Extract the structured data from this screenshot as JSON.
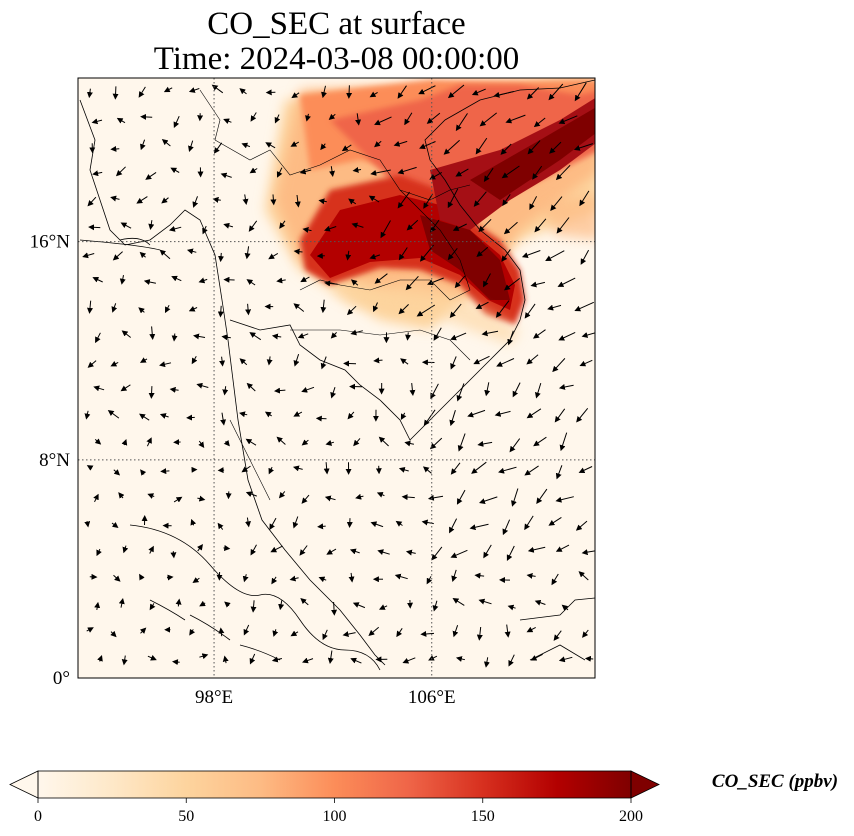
{
  "figure": {
    "title_line1": "CO_SEC at surface",
    "title_line2": "Time: 2024-03-08 00:00:00"
  },
  "map": {
    "projection": "PlateCarree",
    "lon_range": [
      93,
      112
    ],
    "lat_range": [
      0,
      22
    ],
    "lon_ticks": [
      {
        "value": 98,
        "label": "98°E"
      },
      {
        "value": 106,
        "label": "106°E"
      }
    ],
    "lat_ticks": [
      {
        "value": 16,
        "label": "16°N"
      },
      {
        "value": 8,
        "label": "8°N"
      },
      {
        "value": 0,
        "label": "0°"
      }
    ],
    "gridlines": "dotted",
    "field": "CO_SEC",
    "plume": [
      {
        "region": "northern Vietnam / Laos",
        "level": "high"
      },
      {
        "region": "northeast Thailand",
        "level": "high"
      },
      {
        "region": "central Vietnam",
        "level": "high"
      },
      {
        "region": "southern Cambodia / Vietnam",
        "level": "low"
      }
    ],
    "wind_vectors": "shown"
  },
  "colorbar": {
    "label": "CO_SEC (ppbv)",
    "min": 0,
    "max": 200,
    "extend": "both",
    "ticks": [
      "0",
      "50",
      "100",
      "150",
      "200"
    ],
    "colormap": "OrRd",
    "colors": [
      "#fff7ec",
      "#fee8c8",
      "#fdd49e",
      "#fdbb84",
      "#fc8d59",
      "#ef6548",
      "#d7301f",
      "#b30000",
      "#7f0000"
    ]
  }
}
